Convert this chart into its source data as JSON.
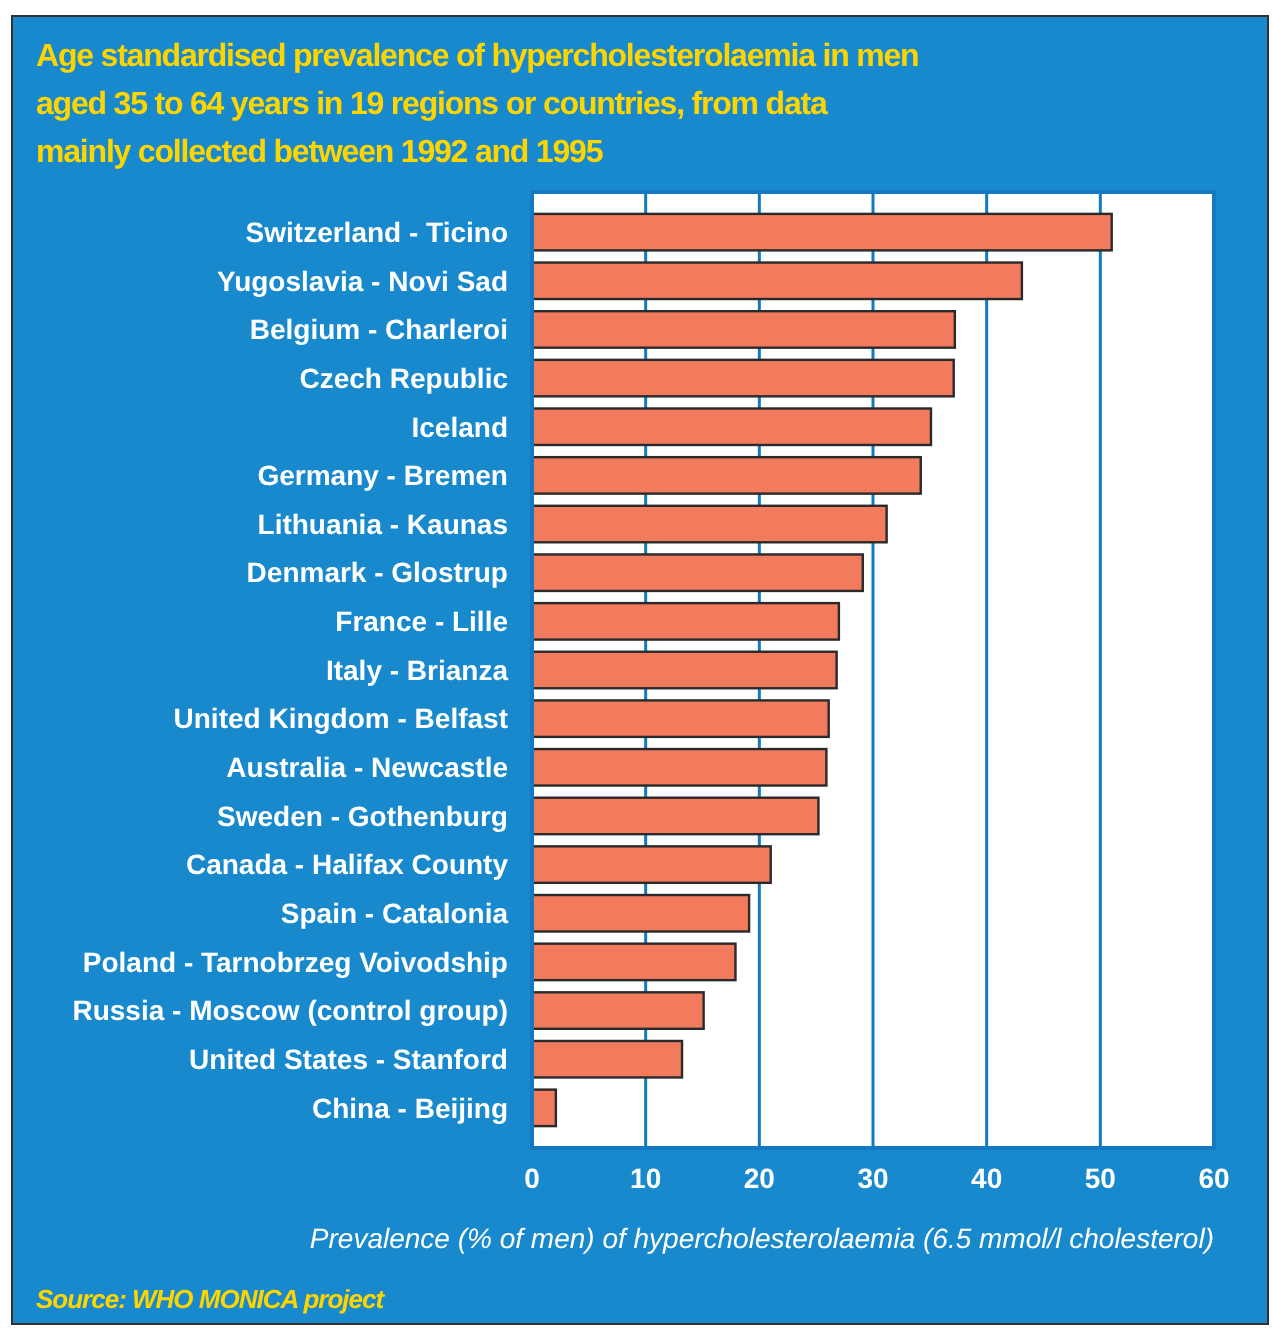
{
  "chart_data": {
    "type": "bar",
    "orientation": "horizontal",
    "title": "Age standardised prevalence of hypercholesterolaemia in men aged 35 to 64 years in 19 regions or countries, from data mainly collected between 1992 and 1995",
    "categories": [
      "Switzerland - Ticino",
      "Yugoslavia - Novi Sad",
      "Belgium - Charleroi",
      "Czech Republic",
      "Iceland",
      "Germany - Bremen",
      "Lithuania - Kaunas",
      "Denmark - Glostrup",
      "France - Lille",
      "Italy - Brianza",
      "United Kingdom - Belfast",
      "Australia - Newcastle",
      "Sweden - Gothenburg",
      "Canada - Halifax County",
      "Spain - Catalonia",
      "Poland - Tarnobrzeg Voivodship",
      "Russia - Moscow (control group)",
      "United States - Stanford",
      "China - Beijing"
    ],
    "values": [
      51,
      43.1,
      37.2,
      37.1,
      35.1,
      34.2,
      31.2,
      29.1,
      27,
      26.8,
      26.1,
      25.9,
      25.2,
      21,
      19.1,
      17.9,
      15.1,
      13.2,
      2.1
    ],
    "color": "#f27b5d",
    "xlim": [
      0,
      60
    ],
    "xticks": [
      0,
      10,
      20,
      30,
      40,
      50,
      60
    ],
    "grid": "x",
    "xlabel": "Prevalence (% of men) of hypercholesterolaemia (6.5 mmol/l cholesterol)",
    "annotations": [
      "Source: WHO MONICA project"
    ]
  }
}
